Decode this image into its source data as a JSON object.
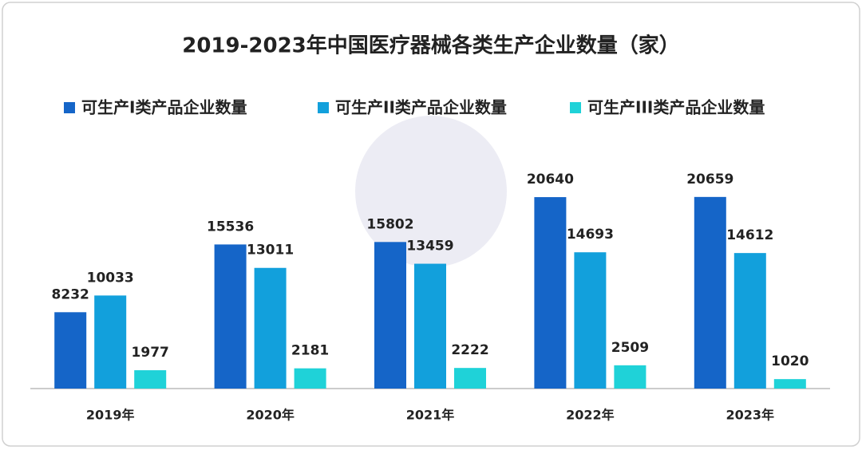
{
  "chart_data": {
    "type": "bar",
    "title": "2019-2023年中国医疗器械各类生产企业数量（家）",
    "categories": [
      "2019年",
      "2020年",
      "2021年",
      "2022年",
      "2023年"
    ],
    "series": [
      {
        "name": "可生产I类产品企业数量",
        "color": "#1565c8",
        "values": [
          8232,
          15536,
          15802,
          20640,
          20659
        ]
      },
      {
        "name": "可生产II类产品企业数量",
        "color": "#12a0dc",
        "values": [
          10033,
          13011,
          13459,
          14693,
          14612
        ]
      },
      {
        "name": "可生产III类产品企业数量",
        "color": "#1fd2d8",
        "values": [
          1977,
          2181,
          2222,
          2509,
          1020
        ]
      }
    ],
    "ylim": [
      0,
      24000
    ],
    "legend": "top"
  }
}
